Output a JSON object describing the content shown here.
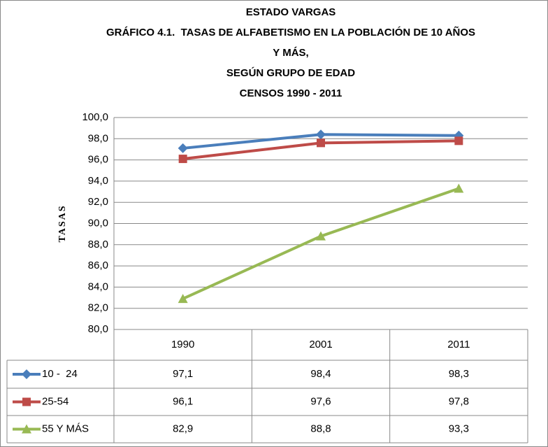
{
  "chart_data": {
    "type": "line",
    "title": [
      "ESTADO VARGAS",
      "GRÁFICO 4.1.  TASAS DE ALFABETISMO EN LA POBLACIÓN DE 10 AÑOS",
      "Y MÁS,",
      "SEGÚN GRUPO DE EDAD",
      "CENSOS 1990 - 2011"
    ],
    "ylabel": "TASAS",
    "categories": [
      "1990",
      "2001",
      "2011"
    ],
    "series": [
      {
        "name": "10 -  24",
        "color": "#4a7ebb",
        "marker": "diamond",
        "values": [
          97.1,
          98.4,
          98.3
        ],
        "value_labels": [
          "97,1",
          "98,4",
          "98,3"
        ]
      },
      {
        "name": "25-54",
        "color": "#be4b48",
        "marker": "square",
        "values": [
          96.1,
          97.6,
          97.8
        ],
        "value_labels": [
          "96,1",
          "97,6",
          "97,8"
        ]
      },
      {
        "name": "55 Y MÁS",
        "color": "#98b954",
        "marker": "triangle",
        "values": [
          82.9,
          88.8,
          93.3
        ],
        "value_labels": [
          "82,9",
          "88,8",
          "93,3"
        ]
      }
    ],
    "ylim": [
      80,
      100
    ],
    "yticks": [
      {
        "value": 80,
        "label": "80,0"
      },
      {
        "value": 82,
        "label": "82,0"
      },
      {
        "value": 84,
        "label": "84,0"
      },
      {
        "value": 86,
        "label": "86,0"
      },
      {
        "value": 88,
        "label": "88,0"
      },
      {
        "value": 90,
        "label": "90,0"
      },
      {
        "value": 92,
        "label": "92,0"
      },
      {
        "value": 94,
        "label": "94,0"
      },
      {
        "value": 96,
        "label": "96,0"
      },
      {
        "value": 98,
        "label": "98,0"
      },
      {
        "value": 100,
        "label": "100,0"
      }
    ],
    "grid": true
  }
}
